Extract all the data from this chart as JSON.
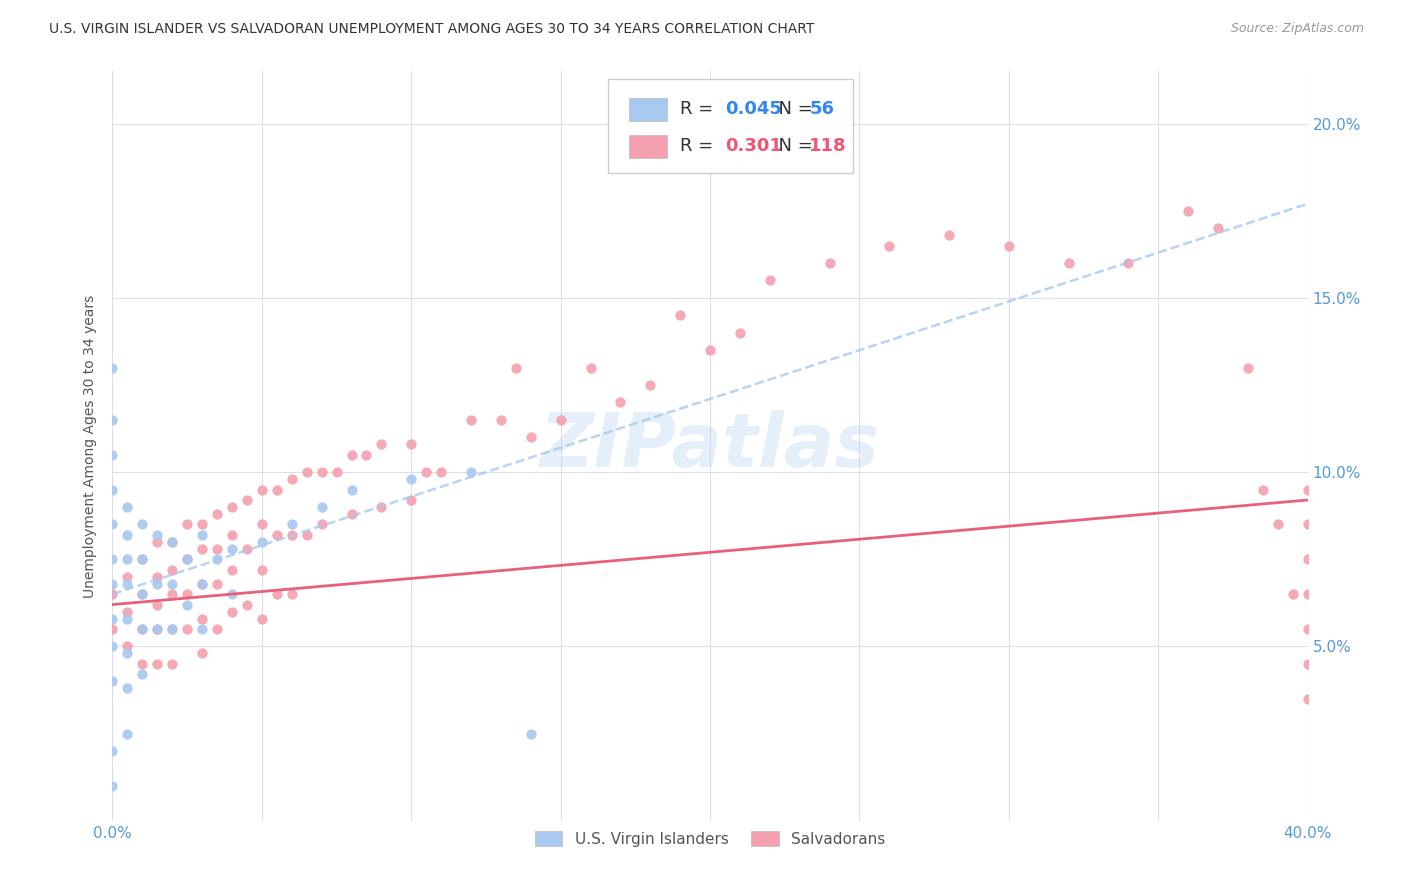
{
  "title": "U.S. VIRGIN ISLANDER VS SALVADORAN UNEMPLOYMENT AMONG AGES 30 TO 34 YEARS CORRELATION CHART",
  "source": "Source: ZipAtlas.com",
  "ylabel": "Unemployment Among Ages 30 to 34 years",
  "xlim": [
    0.0,
    0.4
  ],
  "ylim": [
    0.0,
    0.215
  ],
  "xticks": [
    0.0,
    0.05,
    0.1,
    0.15,
    0.2,
    0.25,
    0.3,
    0.35,
    0.4
  ],
  "yticks": [
    0.0,
    0.05,
    0.1,
    0.15,
    0.2
  ],
  "color_blue": "#A8C8F0",
  "color_pink": "#F4A0B0",
  "line_blue_color": "#A8C8F0",
  "line_pink_color": "#E8607A",
  "r_blue": "0.045",
  "n_blue": "56",
  "r_pink": "0.301",
  "n_pink": "118",
  "vi_scatter_x": [
    0.0,
    0.0,
    0.0,
    0.0,
    0.0,
    0.0,
    0.0,
    0.0,
    0.0,
    0.0,
    0.0,
    0.0,
    0.005,
    0.005,
    0.005,
    0.005,
    0.005,
    0.005,
    0.005,
    0.005,
    0.01,
    0.01,
    0.01,
    0.01,
    0.01,
    0.015,
    0.015,
    0.015,
    0.02,
    0.02,
    0.02,
    0.025,
    0.025,
    0.03,
    0.03,
    0.03,
    0.035,
    0.04,
    0.04,
    0.05,
    0.06,
    0.07,
    0.08,
    0.1,
    0.12,
    0.14
  ],
  "vi_scatter_y": [
    0.13,
    0.115,
    0.105,
    0.095,
    0.085,
    0.075,
    0.068,
    0.058,
    0.05,
    0.04,
    0.02,
    0.01,
    0.09,
    0.082,
    0.075,
    0.068,
    0.058,
    0.048,
    0.038,
    0.025,
    0.085,
    0.075,
    0.065,
    0.055,
    0.042,
    0.082,
    0.068,
    0.055,
    0.08,
    0.068,
    0.055,
    0.075,
    0.062,
    0.082,
    0.068,
    0.055,
    0.075,
    0.078,
    0.065,
    0.08,
    0.085,
    0.09,
    0.095,
    0.098,
    0.1,
    0.025
  ],
  "sal_scatter_x": [
    0.0,
    0.0,
    0.005,
    0.005,
    0.005,
    0.01,
    0.01,
    0.01,
    0.01,
    0.015,
    0.015,
    0.015,
    0.015,
    0.015,
    0.02,
    0.02,
    0.02,
    0.02,
    0.02,
    0.025,
    0.025,
    0.025,
    0.025,
    0.03,
    0.03,
    0.03,
    0.03,
    0.03,
    0.035,
    0.035,
    0.035,
    0.035,
    0.04,
    0.04,
    0.04,
    0.04,
    0.045,
    0.045,
    0.045,
    0.05,
    0.05,
    0.05,
    0.05,
    0.055,
    0.055,
    0.055,
    0.06,
    0.06,
    0.06,
    0.065,
    0.065,
    0.07,
    0.07,
    0.075,
    0.08,
    0.08,
    0.085,
    0.09,
    0.09,
    0.1,
    0.1,
    0.105,
    0.11,
    0.12,
    0.13,
    0.135,
    0.14,
    0.15,
    0.16,
    0.17,
    0.18,
    0.19,
    0.2,
    0.21,
    0.22,
    0.24,
    0.26,
    0.28,
    0.3,
    0.32,
    0.34,
    0.36,
    0.37,
    0.38,
    0.385,
    0.39,
    0.395,
    0.4,
    0.4,
    0.4,
    0.4,
    0.4,
    0.4,
    0.4
  ],
  "sal_scatter_y": [
    0.065,
    0.055,
    0.07,
    0.06,
    0.05,
    0.075,
    0.065,
    0.055,
    0.045,
    0.08,
    0.07,
    0.062,
    0.055,
    0.045,
    0.08,
    0.072,
    0.065,
    0.055,
    0.045,
    0.085,
    0.075,
    0.065,
    0.055,
    0.085,
    0.078,
    0.068,
    0.058,
    0.048,
    0.088,
    0.078,
    0.068,
    0.055,
    0.09,
    0.082,
    0.072,
    0.06,
    0.092,
    0.078,
    0.062,
    0.095,
    0.085,
    0.072,
    0.058,
    0.095,
    0.082,
    0.065,
    0.098,
    0.082,
    0.065,
    0.1,
    0.082,
    0.1,
    0.085,
    0.1,
    0.105,
    0.088,
    0.105,
    0.108,
    0.09,
    0.108,
    0.092,
    0.1,
    0.1,
    0.115,
    0.115,
    0.13,
    0.11,
    0.115,
    0.13,
    0.12,
    0.125,
    0.145,
    0.135,
    0.14,
    0.155,
    0.16,
    0.165,
    0.168,
    0.165,
    0.16,
    0.16,
    0.175,
    0.17,
    0.13,
    0.095,
    0.085,
    0.065,
    0.095,
    0.085,
    0.075,
    0.065,
    0.055,
    0.045,
    0.035
  ]
}
